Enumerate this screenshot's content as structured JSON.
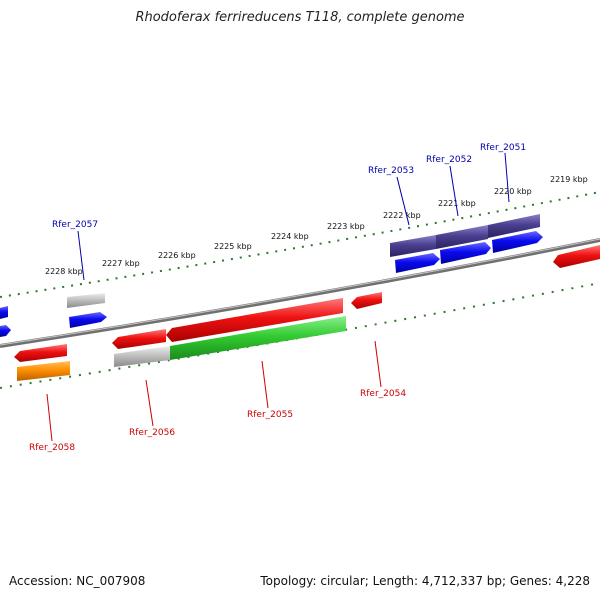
{
  "title": "Rhodoferax ferrireducens T118, complete genome",
  "footer": {
    "accession": "Accession: NC_007908",
    "summary": "Topology: circular; Length: 4,712,337 bp; Genes: 4,228"
  },
  "scale_labels": [
    "2228 kbp",
    "2227 kbp",
    "2226 kbp",
    "2225 kbp",
    "2224 kbp",
    "2223 kbp",
    "2222 kbp",
    "2221 kbp",
    "2220 kbp",
    "2219 kbp"
  ],
  "genes_top": [
    "Rfer_2057",
    "Rfer_2053",
    "Rfer_2052",
    "Rfer_2051"
  ],
  "genes_bottom": [
    "Rfer_2058",
    "Rfer_2056",
    "Rfer_2055",
    "Rfer_2054"
  ],
  "colors": {
    "top_gene_label": "#0000aa",
    "bottom_gene_label": "#cc0000",
    "scale_ticks": "#2a7a2a",
    "backbone": "#888888"
  }
}
